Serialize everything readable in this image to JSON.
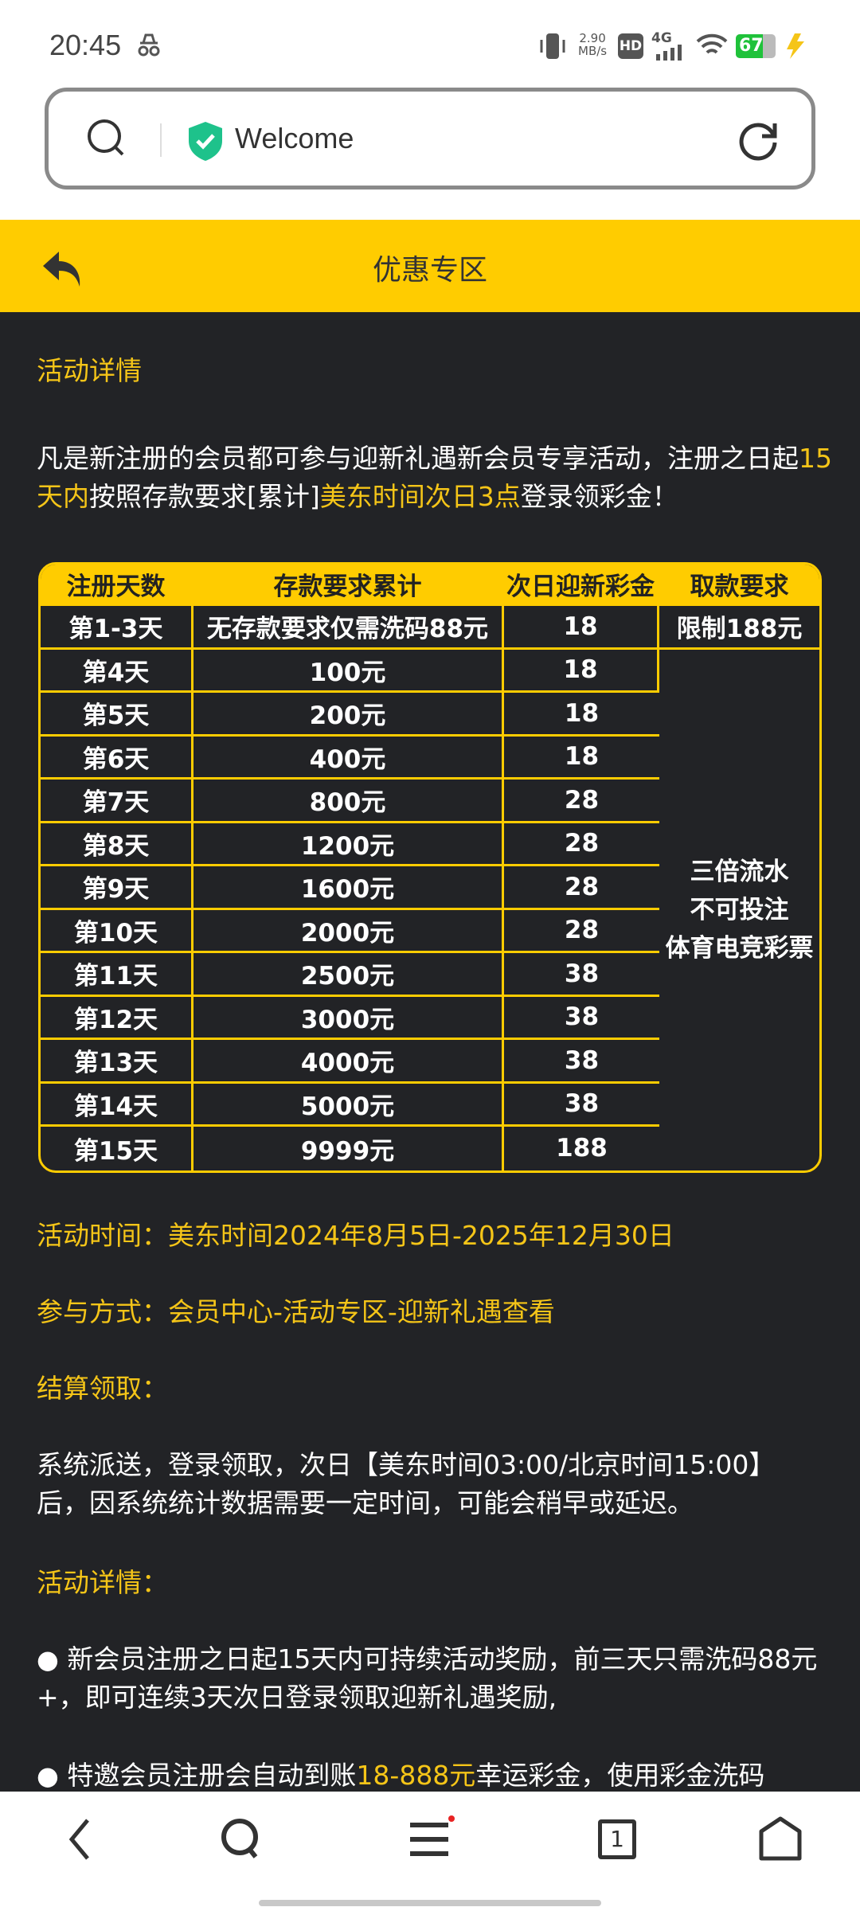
{
  "status": {
    "time": "20:45",
    "speed": "2.90",
    "speed_unit": "MB/s",
    "network": "4G",
    "battery": "67"
  },
  "browser": {
    "url_title": "Welcome",
    "tab_count": "1"
  },
  "header": {
    "title": "优惠专区"
  },
  "content": {
    "section1_title": "活动详情",
    "intro_parts": [
      "凡是新注册的会员都可参与迎新礼遇新会员专享活动，注册之日起",
      "15天内",
      "按照存款要求[累计]",
      "美东时间次日3点",
      "登录领彩金！"
    ],
    "table": {
      "headers": [
        "注册天数",
        "存款要求累计",
        "次日迎新彩金",
        "取款要求"
      ],
      "rows": [
        [
          "第1-3天",
          "无存款要求仅需洗码88元",
          "18"
        ],
        [
          "第4天",
          "100元",
          "18"
        ],
        [
          "第5天",
          "200元",
          "18"
        ],
        [
          "第6天",
          "400元",
          "18"
        ],
        [
          "第7天",
          "800元",
          "28"
        ],
        [
          "第8天",
          "1200元",
          "28"
        ],
        [
          "第9天",
          "1600元",
          "28"
        ],
        [
          "第10天",
          "2000元",
          "28"
        ],
        [
          "第11天",
          "2500元",
          "38"
        ],
        [
          "第12天",
          "3000元",
          "38"
        ],
        [
          "第13天",
          "4000元",
          "38"
        ],
        [
          "第14天",
          "5000元",
          "38"
        ],
        [
          "第15天",
          "9999元",
          "188"
        ]
      ],
      "withdraw_first": "限制188元",
      "withdraw_rest": [
        "三倍流水",
        "不可投注",
        "体育电竞彩票"
      ]
    },
    "activity_time": "活动时间：美东时间2024年8月5日-2025年12月30日",
    "participation": "参与方式：会员中心-活动专区-迎新礼遇查看",
    "settlement_title": "结算领取：",
    "settlement_text": "系统派送，登录领取，次日【美东时间03:00/北京时间15:00】后，因系统统计数据需要一定时间，可能会稍早或延迟。",
    "section2_title": "活动详情：",
    "bullet1": "新会员注册之日起15天内可持续活动奖励，前三天只需洗码88元+，即可连续3天次日登录领取迎新礼遇奖励,",
    "bullet2_parts": [
      "特邀会员注册会自动到账",
      "18-888元",
      "幸运彩金，使用彩金洗码"
    ]
  },
  "colors": {
    "accent": "#ffcc00",
    "background": "#222326",
    "highlight": "#f5c518"
  }
}
